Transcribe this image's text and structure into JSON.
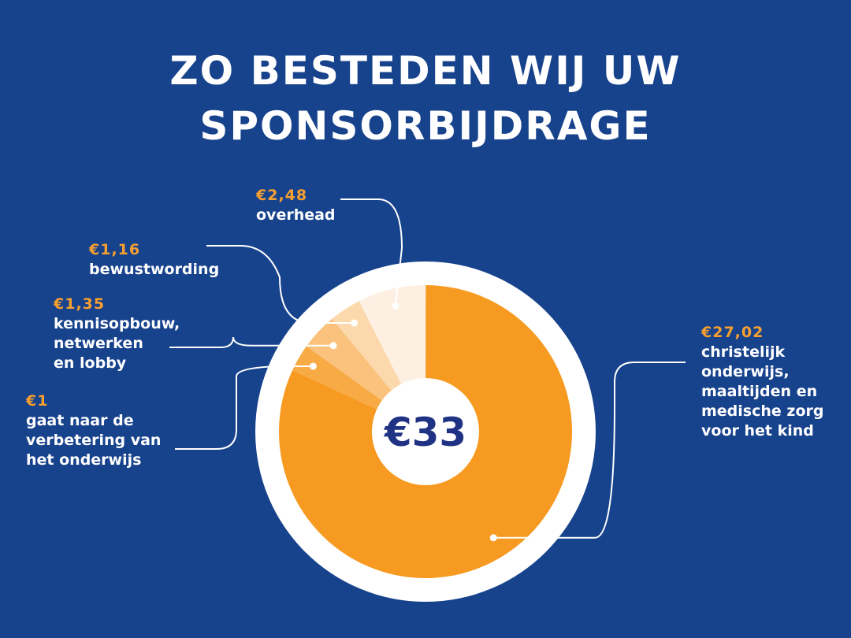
{
  "title_line1": "ZO BESTEDEN WIJ UW",
  "title_line2": "SPONSORBIJDRAGE",
  "colors": {
    "background": "#17428c",
    "text": "#ffffff",
    "amount": "#f7a030",
    "ring": "#ffffff",
    "center_text": "#1f3284"
  },
  "chart_data": {
    "type": "pie",
    "center_label": "€33",
    "total": 33,
    "slices": [
      {
        "amount_label": "€27,02",
        "description": "christelijk\nonderwijs,\nmaaltijden en\nmedische zorg\nvoor het kind",
        "value": 27.02,
        "color": "#f79a21"
      },
      {
        "amount_label": "€1",
        "description": "gaat naar de\nverbetering van\nhet onderwijs",
        "value": 1,
        "color": "#f8aa44"
      },
      {
        "amount_label": "€1,35",
        "description": "kennisopbouw,\nnetwerken\nen lobby",
        "value": 1.35,
        "color": "#fac27c"
      },
      {
        "amount_label": "€1,16",
        "description": "bewustwording",
        "value": 1.16,
        "color": "#fcd9ad"
      },
      {
        "amount_label": "€2,48",
        "description": "overhead",
        "value": 2.48,
        "color": "#fdf0e2"
      }
    ]
  }
}
